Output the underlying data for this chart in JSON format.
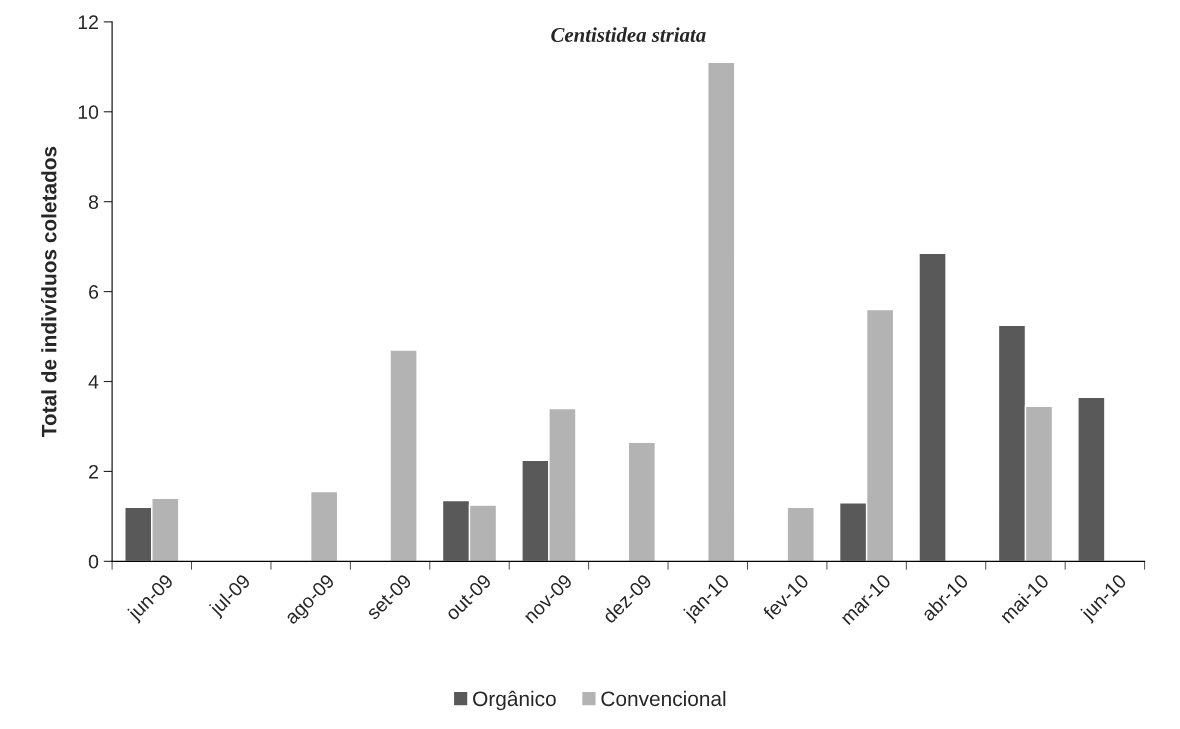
{
  "chart_data": {
    "type": "bar",
    "title": "Centistidea striata",
    "ylabel": "Total de indivíduos coletados",
    "categories": [
      "jun-09",
      "jul-09",
      "ago-09",
      "set-09",
      "out-09",
      "nov-09",
      "dez-09",
      "jan-10",
      "fev-10",
      "mar-10",
      "abr-10",
      "mai-10",
      "jun-10"
    ],
    "series": [
      {
        "name": "Orgânico",
        "color": "#595959",
        "values": [
          1.2,
          null,
          null,
          null,
          1.35,
          2.25,
          null,
          null,
          null,
          1.3,
          6.85,
          5.25,
          3.65
        ]
      },
      {
        "name": "Convencional",
        "color": "#b3b3b3",
        "values": [
          1.4,
          null,
          1.55,
          4.7,
          1.25,
          3.4,
          2.65,
          11.1,
          1.2,
          5.6,
          null,
          3.45,
          null
        ]
      }
    ],
    "ylim": [
      0,
      12
    ],
    "yticks": [
      0,
      2,
      4,
      6,
      8,
      10,
      12
    ],
    "grid": false,
    "legend": "bottom"
  }
}
